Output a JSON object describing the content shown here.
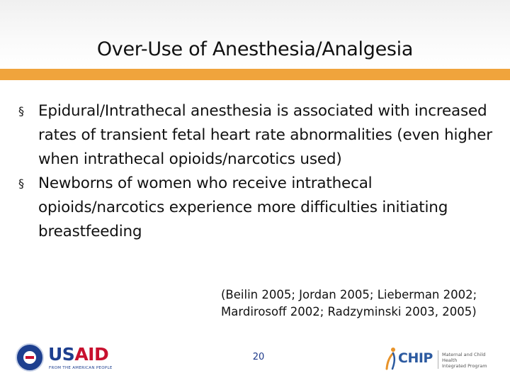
{
  "slide": {
    "title": "Over-Use of Anesthesia/Analgesia",
    "bullets": [
      "Epidural/Intrathecal anesthesia is associated with increased rates of transient fetal heart rate abnormalities (even higher when intrathecal opioids/narcotics used)",
      "Newborns of women who receive intrathecal opioids/narcotics experience more difficulties initiating breastfeeding"
    ],
    "bullet_marker": "§",
    "citation_line1": "(Beilin 2005; Jordan 2005; Lieberman 2002;",
    "citation_line2": "Mardirosoff 2002; Radzyminski 2003, 2005)",
    "slide_number": "20"
  },
  "logos": {
    "usaid": {
      "text_us": "US",
      "text_aid": "AID",
      "tagline": "FROM THE AMERICAN PEOPLE"
    },
    "mchip": {
      "text": "CHIP",
      "desc_line1": "Maternal and Child Health",
      "desc_line2": "Integrated Program"
    }
  },
  "colors": {
    "accent_bar": "#f0a43c",
    "usaid_blue": "#1d3f8f",
    "usaid_red": "#c8102e",
    "mchip_blue": "#2c5aa0"
  }
}
